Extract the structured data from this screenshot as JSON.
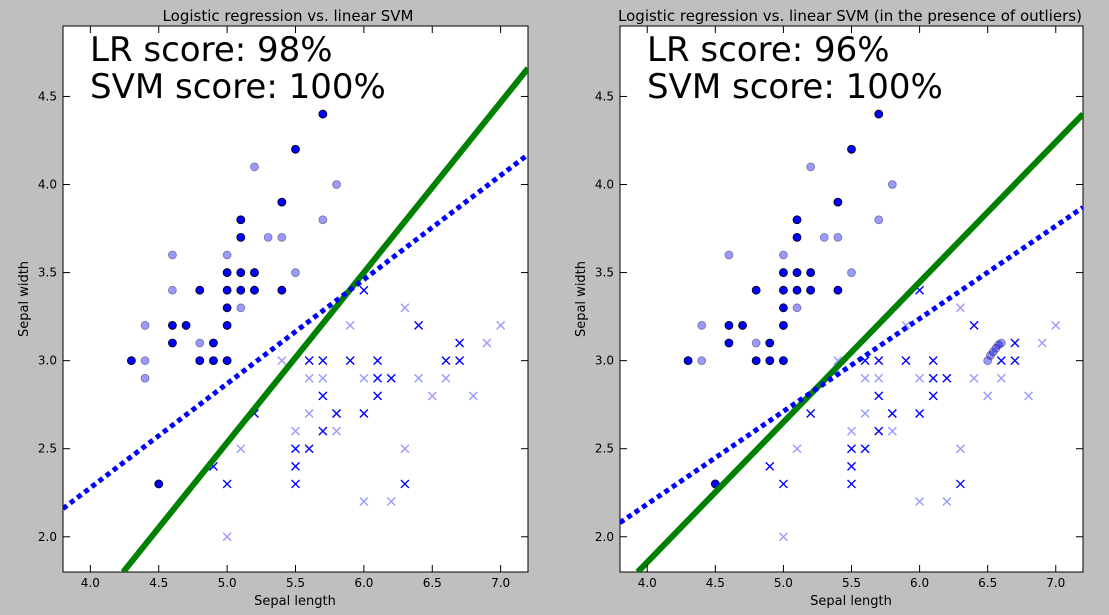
{
  "chart_data": [
    {
      "type": "scatter",
      "title": "Logistic regression vs. linear SVM",
      "xlabel": "Sepal length",
      "ylabel": "Sepal width",
      "xlim": [
        3.8,
        7.2
      ],
      "ylim": [
        1.8,
        4.9
      ],
      "xticks": [
        "4.0",
        "4.5",
        "5.0",
        "5.5",
        "6.0",
        "6.5",
        "7.0"
      ],
      "yticks": [
        "2.0",
        "2.5",
        "3.0",
        "3.5",
        "4.0",
        "4.5"
      ],
      "annotations": [
        "LR score: 98%",
        "SVM score: 100%"
      ],
      "colors": {
        "points": "#0000ff",
        "lr_line": "#008000",
        "svm_line": "#0000ff",
        "marker_edge": "#000000"
      },
      "lines": [
        {
          "style": "solid",
          "color": "#008000",
          "x": [
            4.24,
            7.2
          ],
          "y": [
            1.8,
            4.66
          ]
        },
        {
          "style": "dotted",
          "color": "#0000ff",
          "x": [
            3.8,
            7.2
          ],
          "y": [
            2.16,
            4.17
          ]
        }
      ],
      "series": [
        {
          "marker": "circle",
          "filled": true,
          "points": [
            [
              4.3,
              3.0
            ],
            [
              4.5,
              2.3
            ],
            [
              4.6,
              3.1
            ],
            [
              4.6,
              3.2
            ],
            [
              4.7,
              3.2
            ],
            [
              4.8,
              3.0
            ],
            [
              4.8,
              3.4
            ],
            [
              4.9,
              3.0
            ],
            [
              4.9,
              3.1
            ],
            [
              5.0,
              3.0
            ],
            [
              5.0,
              3.2
            ],
            [
              5.0,
              3.3
            ],
            [
              5.0,
              3.4
            ],
            [
              5.0,
              3.5
            ],
            [
              5.1,
              3.4
            ],
            [
              5.1,
              3.5
            ],
            [
              5.1,
              3.7
            ],
            [
              5.1,
              3.8
            ],
            [
              5.2,
              3.4
            ],
            [
              5.2,
              3.5
            ],
            [
              5.4,
              3.4
            ],
            [
              5.4,
              3.9
            ],
            [
              5.5,
              4.2
            ],
            [
              5.7,
              4.4
            ]
          ]
        },
        {
          "marker": "circle",
          "filled": false,
          "points": [
            [
              4.4,
              2.9
            ],
            [
              4.4,
              3.0
            ],
            [
              4.4,
              3.2
            ],
            [
              4.6,
              3.4
            ],
            [
              4.6,
              3.6
            ],
            [
              4.8,
              3.1
            ],
            [
              5.0,
              3.6
            ],
            [
              5.1,
              3.3
            ],
            [
              5.2,
              4.1
            ],
            [
              5.3,
              3.7
            ],
            [
              5.4,
              3.7
            ],
            [
              5.5,
              3.5
            ],
            [
              5.7,
              3.8
            ],
            [
              5.8,
              4.0
            ],
            [
              5.2,
              3.4
            ]
          ]
        },
        {
          "marker": "x",
          "filled": true,
          "points": [
            [
              4.9,
              2.4
            ],
            [
              5.0,
              2.3
            ],
            [
              5.2,
              2.7
            ],
            [
              5.5,
              2.3
            ],
            [
              5.5,
              2.4
            ],
            [
              5.5,
              2.5
            ],
            [
              5.6,
              2.5
            ],
            [
              5.6,
              3.0
            ],
            [
              5.7,
              2.6
            ],
            [
              5.7,
              2.8
            ],
            [
              5.7,
              3.0
            ],
            [
              5.8,
              2.7
            ],
            [
              5.9,
              3.0
            ],
            [
              6.0,
              2.7
            ],
            [
              6.0,
              3.4
            ],
            [
              6.1,
              2.8
            ],
            [
              6.1,
              2.9
            ],
            [
              6.1,
              3.0
            ],
            [
              6.2,
              2.9
            ],
            [
              6.3,
              2.3
            ],
            [
              6.4,
              3.2
            ],
            [
              6.6,
              3.0
            ],
            [
              6.7,
              3.0
            ],
            [
              6.7,
              3.1
            ]
          ]
        },
        {
          "marker": "x",
          "filled": false,
          "points": [
            [
              5.0,
              2.0
            ],
            [
              5.1,
              2.5
            ],
            [
              5.4,
              3.0
            ],
            [
              5.5,
              2.6
            ],
            [
              5.6,
              2.7
            ],
            [
              5.6,
              2.9
            ],
            [
              5.7,
              2.9
            ],
            [
              5.8,
              2.6
            ],
            [
              5.8,
              2.7
            ],
            [
              5.9,
              3.2
            ],
            [
              6.0,
              2.2
            ],
            [
              6.0,
              2.9
            ],
            [
              6.2,
              2.2
            ],
            [
              6.3,
              2.5
            ],
            [
              6.3,
              3.3
            ],
            [
              6.4,
              2.9
            ],
            [
              6.5,
              2.8
            ],
            [
              6.6,
              2.9
            ],
            [
              6.8,
              2.8
            ],
            [
              6.9,
              3.1
            ],
            [
              7.0,
              3.2
            ]
          ]
        }
      ]
    },
    {
      "type": "scatter",
      "title": "Logistic regression vs. linear SVM (in the presence of outliers)",
      "xlabel": "Sepal length",
      "ylabel": "Sepal width",
      "xlim": [
        3.8,
        7.2
      ],
      "ylim": [
        1.8,
        4.9
      ],
      "xticks": [
        "4.0",
        "4.5",
        "5.0",
        "5.5",
        "6.0",
        "6.5",
        "7.0"
      ],
      "yticks": [
        "2.0",
        "2.5",
        "3.0",
        "3.5",
        "4.0",
        "4.5"
      ],
      "annotations": [
        "LR score: 96%",
        "SVM score: 100%"
      ],
      "colors": {
        "points": "#0000ff",
        "lr_line": "#008000",
        "svm_line": "#0000ff",
        "marker_edge": "#000000"
      },
      "lines": [
        {
          "style": "solid",
          "color": "#008000",
          "x": [
            3.93,
            7.2
          ],
          "y": [
            1.8,
            4.4
          ]
        },
        {
          "style": "dotted",
          "color": "#0000ff",
          "x": [
            3.8,
            7.2
          ],
          "y": [
            2.08,
            3.87
          ]
        }
      ],
      "series": [
        {
          "marker": "circle",
          "filled": true,
          "points": [
            [
              4.3,
              3.0
            ],
            [
              4.5,
              2.3
            ],
            [
              4.6,
              3.1
            ],
            [
              4.6,
              3.2
            ],
            [
              4.7,
              3.2
            ],
            [
              4.8,
              3.0
            ],
            [
              4.8,
              3.4
            ],
            [
              4.9,
              3.0
            ],
            [
              4.9,
              3.1
            ],
            [
              5.0,
              3.0
            ],
            [
              5.0,
              3.2
            ],
            [
              5.0,
              3.3
            ],
            [
              5.0,
              3.4
            ],
            [
              5.0,
              3.5
            ],
            [
              5.1,
              3.4
            ],
            [
              5.1,
              3.5
            ],
            [
              5.1,
              3.7
            ],
            [
              5.1,
              3.8
            ],
            [
              5.2,
              3.4
            ],
            [
              5.2,
              3.5
            ],
            [
              5.4,
              3.4
            ],
            [
              5.4,
              3.9
            ],
            [
              5.5,
              4.2
            ],
            [
              5.7,
              4.4
            ]
          ]
        },
        {
          "marker": "circle",
          "filled": false,
          "points": [
            [
              4.4,
              3.0
            ],
            [
              4.4,
              3.2
            ],
            [
              4.6,
              3.6
            ],
            [
              4.8,
              3.1
            ],
            [
              5.0,
              3.6
            ],
            [
              5.1,
              3.3
            ],
            [
              5.2,
              4.1
            ],
            [
              5.3,
              3.7
            ],
            [
              5.4,
              3.7
            ],
            [
              5.5,
              3.5
            ],
            [
              5.7,
              3.8
            ],
            [
              5.8,
              4.0
            ],
            [
              5.2,
              3.4
            ],
            [
              6.5,
              3.0
            ],
            [
              6.52,
              3.03
            ],
            [
              6.54,
              3.05
            ],
            [
              6.56,
              3.07
            ],
            [
              6.58,
              3.09
            ],
            [
              6.6,
              3.1
            ]
          ]
        },
        {
          "marker": "x",
          "filled": true,
          "points": [
            [
              4.9,
              2.4
            ],
            [
              5.0,
              2.3
            ],
            [
              5.2,
              2.7
            ],
            [
              5.5,
              2.3
            ],
            [
              5.5,
              2.4
            ],
            [
              5.5,
              2.5
            ],
            [
              5.6,
              2.5
            ],
            [
              5.6,
              3.0
            ],
            [
              5.7,
              2.6
            ],
            [
              5.7,
              2.8
            ],
            [
              5.7,
              3.0
            ],
            [
              5.8,
              2.7
            ],
            [
              5.9,
              3.0
            ],
            [
              6.0,
              2.7
            ],
            [
              6.0,
              3.4
            ],
            [
              6.1,
              2.8
            ],
            [
              6.1,
              2.9
            ],
            [
              6.1,
              3.0
            ],
            [
              6.2,
              2.9
            ],
            [
              6.3,
              2.3
            ],
            [
              6.4,
              3.2
            ],
            [
              6.6,
              3.0
            ],
            [
              6.7,
              3.0
            ],
            [
              6.7,
              3.1
            ]
          ]
        },
        {
          "marker": "x",
          "filled": false,
          "points": [
            [
              5.0,
              2.0
            ],
            [
              5.1,
              2.5
            ],
            [
              5.4,
              3.0
            ],
            [
              5.5,
              2.6
            ],
            [
              5.6,
              2.7
            ],
            [
              5.6,
              2.9
            ],
            [
              5.7,
              2.9
            ],
            [
              5.8,
              2.6
            ],
            [
              5.8,
              2.7
            ],
            [
              5.9,
              3.2
            ],
            [
              6.0,
              2.2
            ],
            [
              6.0,
              2.9
            ],
            [
              6.2,
              2.2
            ],
            [
              6.3,
              2.5
            ],
            [
              6.3,
              3.3
            ],
            [
              6.4,
              2.9
            ],
            [
              6.5,
              2.8
            ],
            [
              6.6,
              2.9
            ],
            [
              6.8,
              2.8
            ],
            [
              6.9,
              3.1
            ],
            [
              7.0,
              3.2
            ]
          ]
        }
      ]
    }
  ]
}
